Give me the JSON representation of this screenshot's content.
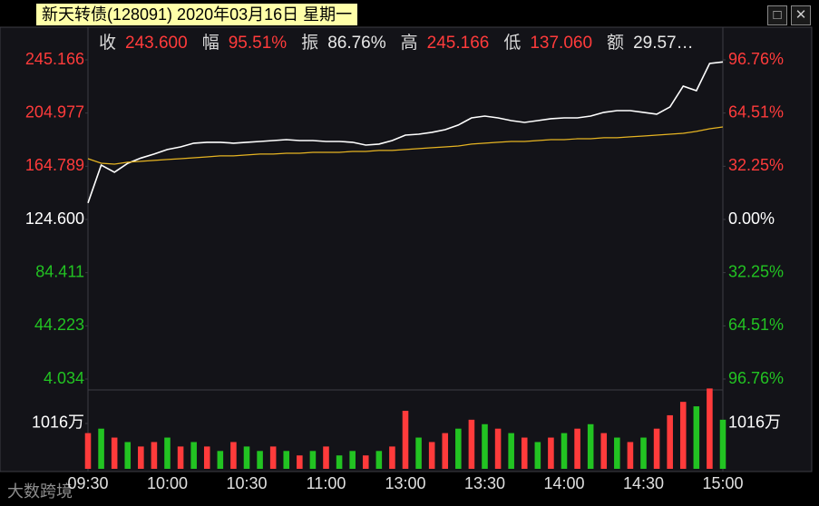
{
  "chart_data": {
    "type": "line",
    "title": "新天转债(128091) 2020年03月16日 星期一",
    "stats": [
      {
        "label": "收",
        "value": "243.600",
        "color": "#ff3b3b"
      },
      {
        "label": "幅",
        "value": "95.51%",
        "color": "#ff3b3b"
      },
      {
        "label": "振",
        "value": "86.76%",
        "color": "#e8e8e8"
      },
      {
        "label": "高",
        "value": "245.166",
        "color": "#ff3b3b"
      },
      {
        "label": "低",
        "value": "137.060",
        "color": "#ff3b3b"
      },
      {
        "label": "额",
        "value": "29.57…",
        "color": "#e8e8e8"
      }
    ],
    "x": [
      "09:30",
      "09:35",
      "09:40",
      "09:45",
      "09:50",
      "09:55",
      "10:00",
      "10:05",
      "10:10",
      "10:15",
      "10:20",
      "10:25",
      "10:30",
      "10:35",
      "10:40",
      "10:45",
      "10:50",
      "10:55",
      "11:00",
      "11:05",
      "11:10",
      "11:15",
      "11:20",
      "11:25",
      "11:30",
      "13:05",
      "13:10",
      "13:15",
      "13:20",
      "13:25",
      "13:30",
      "13:35",
      "13:40",
      "13:45",
      "13:50",
      "13:55",
      "14:00",
      "14:05",
      "14:10",
      "14:15",
      "14:20",
      "14:25",
      "14:30",
      "14:35",
      "14:40",
      "14:45",
      "14:50",
      "14:55",
      "15:00"
    ],
    "xticks": [
      "09:30",
      "10:00",
      "10:30",
      "11:00",
      "13:00",
      "13:30",
      "14:00",
      "14:30",
      "15:00"
    ],
    "series": [
      {
        "color": "#ffffff",
        "values": [
          137.1,
          165.7,
          160.3,
          167,
          171,
          174,
          177.4,
          179.4,
          182.2,
          182.9,
          182.9,
          182.2,
          182.9,
          183.5,
          184.2,
          184.9,
          184.2,
          184.2,
          183.5,
          183.5,
          182.9,
          180.8,
          181.5,
          184.2,
          188.3,
          189,
          190.4,
          192.4,
          195.9,
          201.3,
          202.7,
          201.3,
          199.3,
          197.9,
          199.3,
          200.7,
          201.3,
          201.3,
          202.7,
          205.5,
          206.8,
          206.8,
          205.5,
          204.1,
          209.6,
          225.3,
          221.9,
          242.4,
          243.6
        ]
      },
      {
        "color": "#e6b422",
        "values": [
          170.5,
          167.1,
          166.4,
          167.8,
          168.5,
          169.2,
          169.9,
          170.5,
          171.2,
          171.9,
          172.6,
          172.6,
          173.3,
          174,
          174,
          174.6,
          174.6,
          175.3,
          175.3,
          175.3,
          176,
          176,
          176.7,
          176.7,
          177.4,
          178.1,
          178.8,
          179.4,
          180.1,
          181.5,
          182.2,
          182.9,
          183.5,
          183.5,
          184.2,
          184.9,
          184.9,
          185.6,
          185.6,
          186.3,
          186.3,
          187,
          187.6,
          188.3,
          189,
          189.7,
          191.1,
          193.1,
          194.5
        ]
      }
    ],
    "ylim": [
      4.034,
      245.166
    ],
    "yticks": [
      245.166,
      204.977,
      164.789,
      {
        "value": 124.6,
        "label": "124.600"
      },
      84.411,
      44.223,
      4.034
    ],
    "y2lim": [
      -96.76,
      96.76
    ],
    "y2ticks": [
      {
        "value": 96.76,
        "label": "96.76%"
      },
      {
        "value": 64.51,
        "label": "64.51%"
      },
      {
        "value": 32.25,
        "label": "32.25%"
      },
      {
        "value": 0,
        "label": "0.00%"
      },
      {
        "value": -32.25,
        "label": "32.25%"
      },
      {
        "value": -64.51,
        "label": "64.51%"
      },
      {
        "value": -96.76,
        "label": "96.76%"
      }
    ],
    "up_color": "#ff3b3b",
    "down_color": "#22c322",
    "volume": {
      "values": [
        800,
        900,
        700,
        600,
        500,
        600,
        700,
        500,
        600,
        500,
        400,
        600,
        500,
        400,
        500,
        400,
        300,
        400,
        500,
        300,
        400,
        300,
        400,
        500,
        1300,
        700,
        600,
        800,
        900,
        1100,
        1000,
        900,
        800,
        700,
        600,
        700,
        800,
        900,
        1000,
        800,
        700,
        600,
        700,
        900,
        1200,
        1500,
        1400,
        1800,
        1100
      ],
      "colors": [
        "#ff3b3b",
        "#22c322",
        "#ff3b3b",
        "#22c322",
        "#ff3b3b",
        "#ff3b3b",
        "#22c322",
        "#ff3b3b",
        "#22c322",
        "#ff3b3b",
        "#22c322",
        "#ff3b3b",
        "#22c322",
        "#22c322",
        "#ff3b3b",
        "#22c322",
        "#ff3b3b",
        "#22c322",
        "#ff3b3b",
        "#22c322",
        "#22c322",
        "#ff3b3b",
        "#22c322",
        "#ff3b3b",
        "#ff3b3b",
        "#22c322",
        "#ff3b3b",
        "#ff3b3b",
        "#22c322",
        "#ff3b3b",
        "#22c322",
        "#ff3b3b",
        "#22c322",
        "#ff3b3b",
        "#22c322",
        "#ff3b3b",
        "#22c322",
        "#ff3b3b",
        "#22c322",
        "#ff3b3b",
        "#22c322",
        "#ff3b3b",
        "#22c322",
        "#ff3b3b",
        "#ff3b3b",
        "#ff3b3b",
        "#22c322",
        "#ff3b3b",
        "#22c322"
      ],
      "ylim": [
        0,
        1930
      ],
      "yticks": [
        {
          "value": 1016,
          "label": "1016万"
        }
      ]
    },
    "watermark": "大数跨境"
  }
}
